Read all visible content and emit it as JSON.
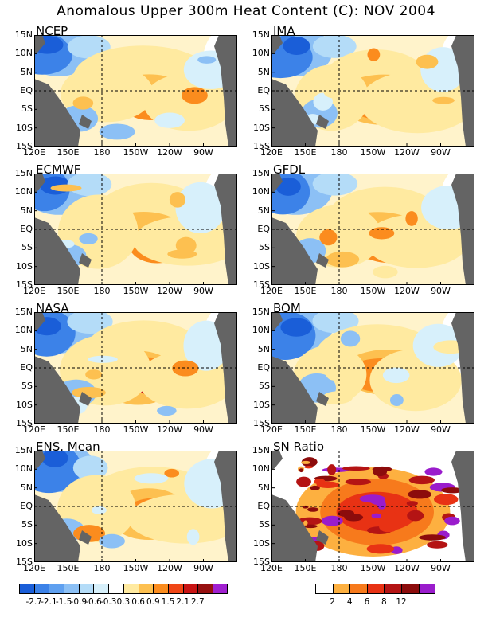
{
  "title": "Anomalous Upper 300m Heat Content (C): NOV 2004",
  "y_ticks": [
    "15N",
    "10N",
    "5N",
    "EQ",
    "5S",
    "10S",
    "15S"
  ],
  "x_ticks": [
    "120E",
    "150E",
    "180",
    "150W",
    "120W",
    "90W"
  ],
  "panels": [
    {
      "name": "NCEP",
      "kind": "anom"
    },
    {
      "name": "JMA",
      "kind": "anom"
    },
    {
      "name": "ECMWF",
      "kind": "anom"
    },
    {
      "name": "GFDL",
      "kind": "anom"
    },
    {
      "name": "NASA",
      "kind": "anom"
    },
    {
      "name": "BOM",
      "kind": "anom"
    },
    {
      "name": "ENS. Mean",
      "kind": "anom"
    },
    {
      "name": "SN Ratio",
      "kind": "snr"
    }
  ],
  "anomaly_colorbar": {
    "colors": [
      "#1a5ed8",
      "#3c82e8",
      "#5fa0f0",
      "#8cc0f5",
      "#b4dcf8",
      "#d7f0fb",
      "#ffffff",
      "#ffeaa0",
      "#fdc050",
      "#fb8c1e",
      "#f04616",
      "#c81414",
      "#961010",
      "#a020d0"
    ],
    "labels": [
      "-2.7",
      "-2.1",
      "-1.5",
      "-0.9",
      "-0.6",
      "-0.3",
      "0.3",
      "0.6",
      "0.9",
      "1.5",
      "2.1",
      "2.7"
    ]
  },
  "snr_colorbar": {
    "colors": [
      "#ffffff",
      "#fdb040",
      "#f77a1c",
      "#e83214",
      "#b41414",
      "#8c0c0c",
      "#9a1ccc"
    ],
    "labels": [
      "2",
      "4",
      "6",
      "8",
      "12"
    ]
  },
  "colors": {
    "land": "#646464",
    "background": "#ffffff"
  }
}
